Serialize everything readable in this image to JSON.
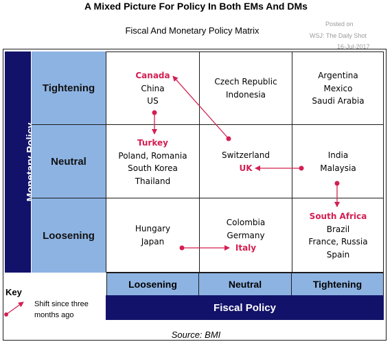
{
  "title": "A Mixed Picture For Policy In Both EMs And DMs",
  "subtitle": "Fiscal And Monetary Policy Matrix",
  "watermark": {
    "line1": "Posted on",
    "line2": "WSJ: The Daily Shot",
    "line3": "16-Jul-2017"
  },
  "y_axis_label": "Monetary Policy",
  "x_axis_label": "Fiscal Policy",
  "row_labels": [
    "Tightening",
    "Neutral",
    "Loosening"
  ],
  "col_labels": [
    "Loosening",
    "Neutral",
    "Tightening"
  ],
  "cells": {
    "r0c0": {
      "highlight": "Canada",
      "rest": [
        "China",
        "US"
      ]
    },
    "r0c1": {
      "rest": [
        "Czech Republic",
        "Indonesia"
      ]
    },
    "r0c2": {
      "rest": [
        "Argentina",
        "Mexico",
        "Saudi Arabia"
      ]
    },
    "r1c0": {
      "highlight": "Turkey",
      "rest": [
        "Poland, Romania",
        "South Korea",
        "Thailand"
      ]
    },
    "r1c1": {
      "line1": "Switzerland",
      "highlight": "UK"
    },
    "r1c2": {
      "rest": [
        "India",
        "Malaysia"
      ]
    },
    "r2c0": {
      "rest": [
        "Hungary",
        "Japan"
      ]
    },
    "r2c1": {
      "rest": [
        "Colombia",
        "Germany"
      ],
      "highlight": "Italy"
    },
    "r2c2": {
      "highlight": "South Africa",
      "rest": [
        "Brazil",
        "France, Russia",
        "Spain"
      ]
    }
  },
  "key": {
    "title": "Key",
    "description": "Shift since three months ago"
  },
  "source": "Source: BMI",
  "colors": {
    "navy": "#13126a",
    "light_blue": "#8db3e2",
    "highlight": "#d31f52"
  }
}
